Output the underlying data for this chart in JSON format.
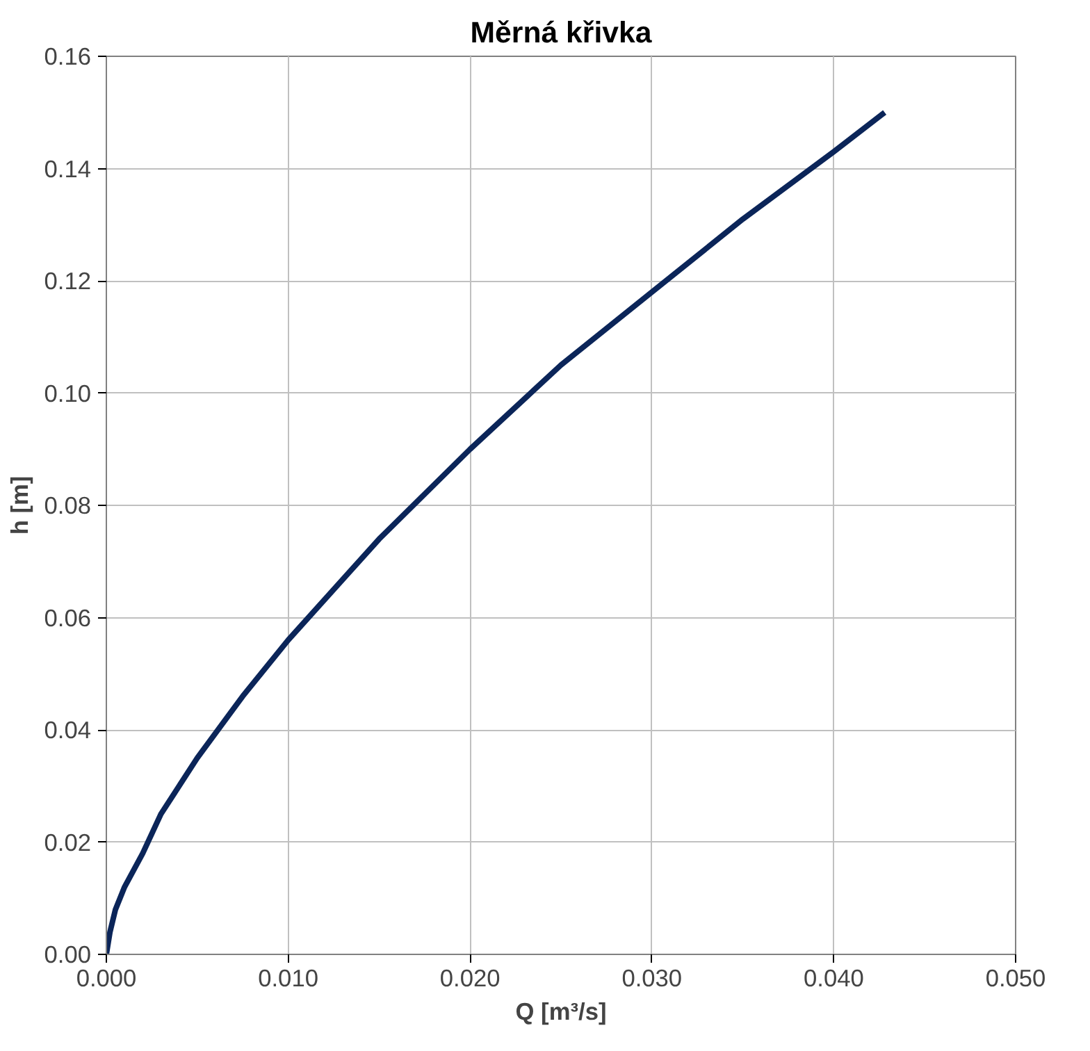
{
  "chart_data": {
    "type": "line",
    "title": "Měrná křivka",
    "xlabel": "Q [m³/s]",
    "ylabel": "h [m]",
    "x": [
      0.0,
      0.0002,
      0.0005,
      0.001,
      0.002,
      0.003,
      0.005,
      0.0075,
      0.01,
      0.015,
      0.02,
      0.025,
      0.03,
      0.035,
      0.04,
      0.0428
    ],
    "series": [
      {
        "color": "#0b2559",
        "values": [
          0.0,
          0.004,
          0.008,
          0.012,
          0.018,
          0.025,
          0.035,
          0.046,
          0.056,
          0.074,
          0.09,
          0.105,
          0.118,
          0.131,
          0.143,
          0.15
        ]
      }
    ],
    "xlim": [
      0,
      0.05
    ],
    "ylim": [
      0,
      0.16
    ],
    "xticks": [
      {
        "value": 0,
        "label": "0.000"
      },
      {
        "value": 0.01,
        "label": "0.010"
      },
      {
        "value": 0.02,
        "label": "0.020"
      },
      {
        "value": 0.03,
        "label": "0.030"
      },
      {
        "value": 0.04,
        "label": "0.040"
      },
      {
        "value": 0.05,
        "label": "0.050"
      }
    ],
    "yticks": [
      {
        "value": 0,
        "label": "0.00"
      },
      {
        "value": 0.02,
        "label": "0.02"
      },
      {
        "value": 0.04,
        "label": "0.04"
      },
      {
        "value": 0.06,
        "label": "0.06"
      },
      {
        "value": 0.08,
        "label": "0.08"
      },
      {
        "value": 0.1,
        "label": "0.10"
      },
      {
        "value": 0.12,
        "label": "0.12"
      },
      {
        "value": 0.14,
        "label": "0.14"
      },
      {
        "value": 0.16,
        "label": "0.16"
      }
    ],
    "grid": true,
    "marker": "none",
    "line_style": "solid"
  }
}
